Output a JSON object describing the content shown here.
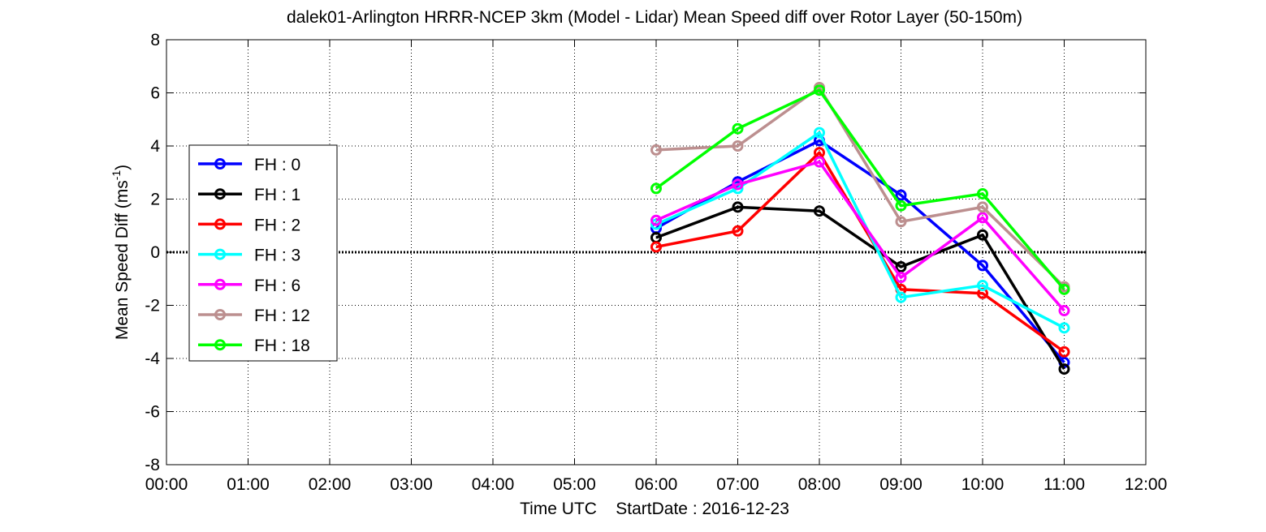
{
  "chart_data": {
    "type": "line",
    "title": "dalek01-Arlington HRRR-NCEP 3km (Model - Lidar) Mean Speed diff over Rotor Layer (50-150m)",
    "xlabel": "Time UTC    StartDate : 2016-12-23",
    "ylabel": "Mean Speed Diff (ms",
    "ylabel_sup": "-1",
    "ylabel_end": ")",
    "x_ticks": [
      "00:00",
      "01:00",
      "02:00",
      "03:00",
      "04:00",
      "05:00",
      "06:00",
      "07:00",
      "08:00",
      "09:00",
      "10:00",
      "11:00",
      "12:00"
    ],
    "y_ticks": [
      "-8",
      "-6",
      "-4",
      "-2",
      "0",
      "2",
      "4",
      "6",
      "8"
    ],
    "xlim": [
      0,
      12
    ],
    "ylim": [
      -8,
      8
    ],
    "grid": true,
    "legend_position": "left",
    "x": [
      6,
      7,
      8,
      9,
      10,
      11
    ],
    "series": [
      {
        "name": "FH : 0",
        "color": "#0000ff",
        "values": [
          0.9,
          2.65,
          4.2,
          2.15,
          -0.5,
          -4.15
        ]
      },
      {
        "name": "FH : 1",
        "color": "#000000",
        "values": [
          0.55,
          1.7,
          1.55,
          -0.55,
          0.65,
          -4.4
        ]
      },
      {
        "name": "FH : 2",
        "color": "#ff0000",
        "values": [
          0.2,
          0.8,
          3.75,
          -1.4,
          -1.55,
          -3.75
        ]
      },
      {
        "name": "FH : 3",
        "color": "#00ffff",
        "values": [
          1.05,
          2.4,
          4.5,
          -1.7,
          -1.25,
          -2.85
        ]
      },
      {
        "name": "FH : 6",
        "color": "#ff00ff",
        "values": [
          1.2,
          2.55,
          3.4,
          -0.95,
          1.3,
          -2.2
        ]
      },
      {
        "name": "FH : 12",
        "color": "#bc8f8f",
        "values": [
          3.85,
          4.0,
          6.2,
          1.15,
          1.7,
          -1.3
        ]
      },
      {
        "name": "FH : 18",
        "color": "#00ff00",
        "values": [
          2.4,
          4.65,
          6.1,
          1.75,
          2.2,
          -1.4
        ]
      }
    ]
  }
}
